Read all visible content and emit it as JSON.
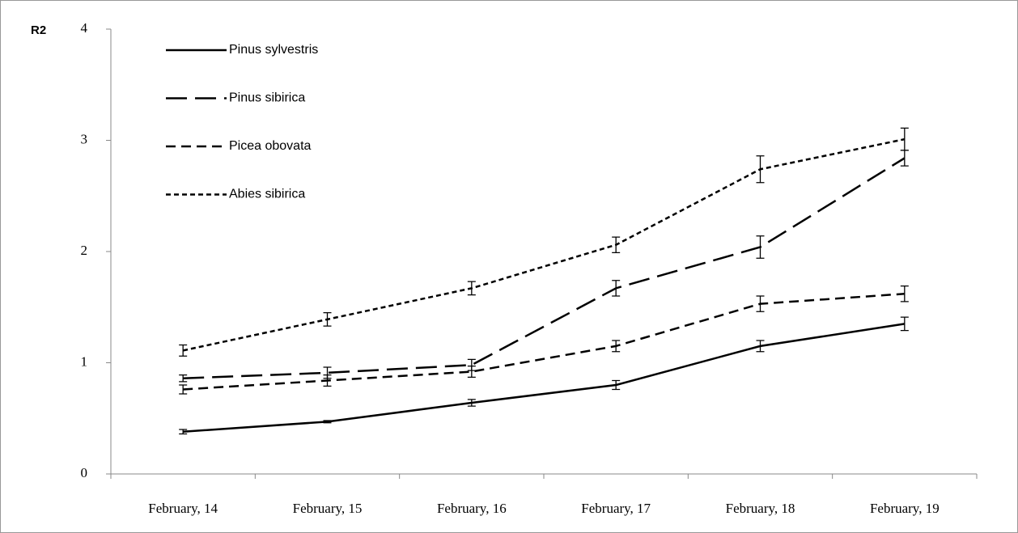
{
  "chart_data": {
    "type": "line",
    "ylabel": "R2",
    "categories": [
      "February, 14",
      "February, 15",
      "February, 16",
      "February, 17",
      "February, 18",
      "February, 19"
    ],
    "ylim": [
      0,
      4
    ],
    "yticks": [
      0,
      1,
      2,
      3,
      4
    ],
    "legend": "upper left",
    "series": [
      {
        "name": "Pinus sylvestris",
        "color": "#000000",
        "values": [
          0.38,
          0.47,
          0.64,
          0.8,
          1.15,
          1.35
        ],
        "errors": [
          0.02,
          0.01,
          0.03,
          0.04,
          0.05,
          0.06
        ]
      },
      {
        "name": "Pinus sibirica",
        "color": "#000000",
        "values": [
          0.86,
          0.91,
          0.98,
          1.67,
          2.04,
          2.84
        ],
        "errors": [
          0.03,
          0.05,
          0.05,
          0.07,
          0.1,
          0.07
        ]
      },
      {
        "name": "Picea obovata",
        "color": "#000000",
        "values": [
          0.76,
          0.84,
          0.92,
          1.15,
          1.53,
          1.62
        ],
        "errors": [
          0.04,
          0.05,
          0.05,
          0.05,
          0.07,
          0.07
        ]
      },
      {
        "name": "Abies sibirica",
        "color": "#000000",
        "values": [
          1.11,
          1.39,
          1.67,
          2.06,
          2.74,
          3.01
        ],
        "errors": [
          0.05,
          0.06,
          0.06,
          0.07,
          0.12,
          0.1
        ]
      }
    ]
  }
}
